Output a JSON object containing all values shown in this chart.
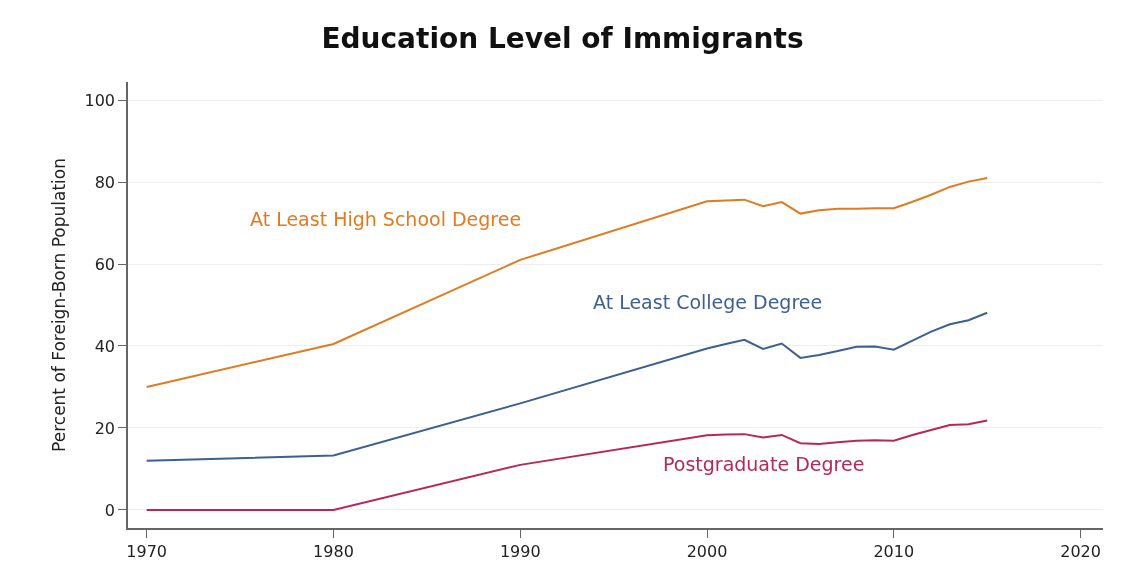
{
  "chart_data": {
    "type": "line",
    "title": "Education Level of Immigrants",
    "ylabel": "Percent of Foreign-Born Population",
    "x": [
      1970,
      1980,
      1990,
      2000,
      2001,
      2002,
      2003,
      2004,
      2005,
      2006,
      2007,
      2008,
      2009,
      2010,
      2011,
      2012,
      2013,
      2014,
      2015
    ],
    "series": [
      {
        "name": "At Least High School Degree",
        "color": "#e07b22",
        "values": [
          30,
          40.5,
          61,
          75.3,
          75.5,
          75.7,
          74.1,
          75.1,
          72.3,
          73.1,
          73.5,
          73.5,
          73.6,
          73.6,
          75.2,
          76.9,
          78.8,
          80.1,
          81
        ]
      },
      {
        "name": "At Least College Degree",
        "color": "#3d5f91",
        "values": [
          12,
          13.3,
          26,
          39.4,
          40.5,
          41.5,
          39.3,
          40.6,
          37.1,
          37.8,
          38.8,
          39.8,
          39.9,
          39.1,
          41.3,
          43.5,
          45.3,
          46.3,
          48.1
        ]
      },
      {
        "name": "Postgraduate Degree",
        "color": "#b8275a",
        "values": [
          0,
          0,
          11,
          18.2,
          18.4,
          18.5,
          17.7,
          18.3,
          16.3,
          16.1,
          16.5,
          16.9,
          17,
          16.9,
          18.3,
          19.5,
          20.7,
          20.9,
          21.8
        ]
      }
    ],
    "xlim": [
      1969,
      2021.2
    ],
    "xticks": [
      1970,
      1980,
      1990,
      2000,
      2010,
      2020
    ],
    "ylim": [
      -4.4,
      104.4
    ],
    "yticks": [
      0,
      20,
      40,
      60,
      80,
      100
    ],
    "grid": "y",
    "legend": false,
    "marker": "none",
    "line_style": "solid"
  }
}
